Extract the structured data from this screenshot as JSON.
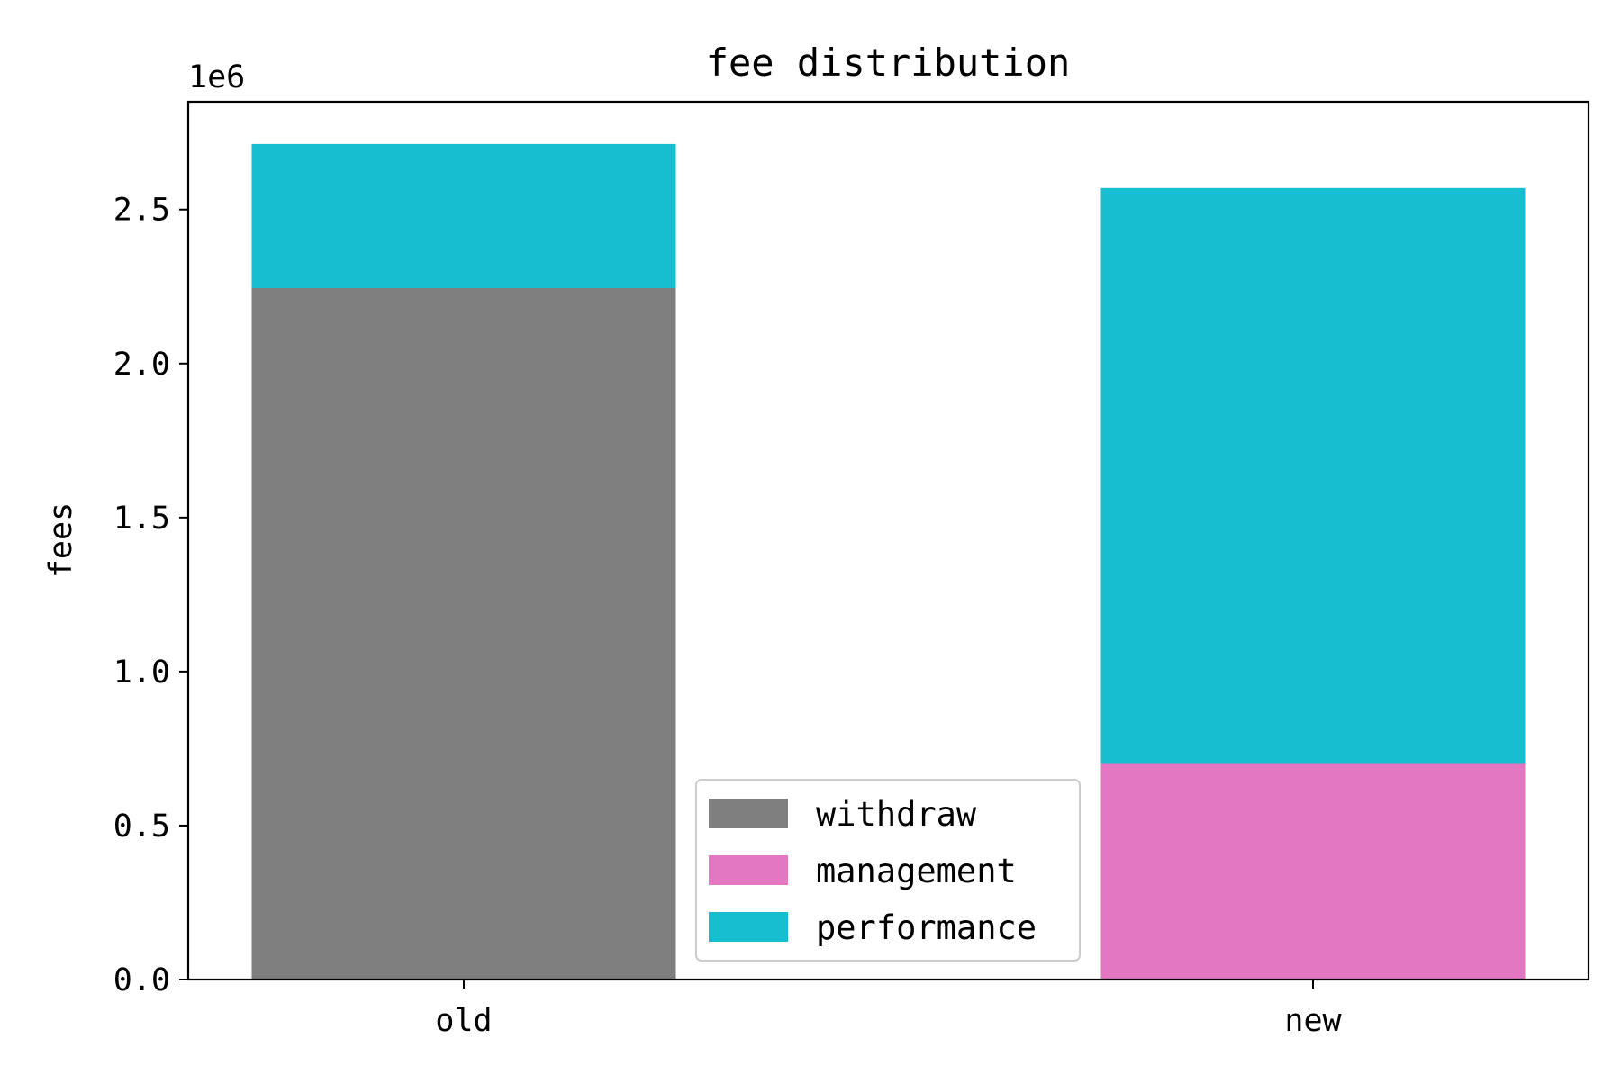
{
  "chart_data": {
    "type": "bar",
    "stacked": true,
    "title": "fee distribution",
    "xlabel": "",
    "ylabel": "fees",
    "y_scale_label": "1e6",
    "categories": [
      "old",
      "new"
    ],
    "ylim": [
      0,
      2850000
    ],
    "yticks": [
      0,
      500000,
      1000000,
      1500000,
      2000000,
      2500000
    ],
    "ytick_labels": [
      "0.0",
      "0.5",
      "1.0",
      "1.5",
      "2.0",
      "2.5"
    ],
    "grid": false,
    "legend_position": "lower-center",
    "series": [
      {
        "name": "withdraw",
        "color": "#7f7f7f",
        "values": [
          2245000,
          0
        ]
      },
      {
        "name": "management",
        "color": "#e377c2",
        "values": [
          0,
          700000
        ]
      },
      {
        "name": "performance",
        "color": "#17becf",
        "values": [
          468000,
          1870000
        ]
      }
    ]
  }
}
